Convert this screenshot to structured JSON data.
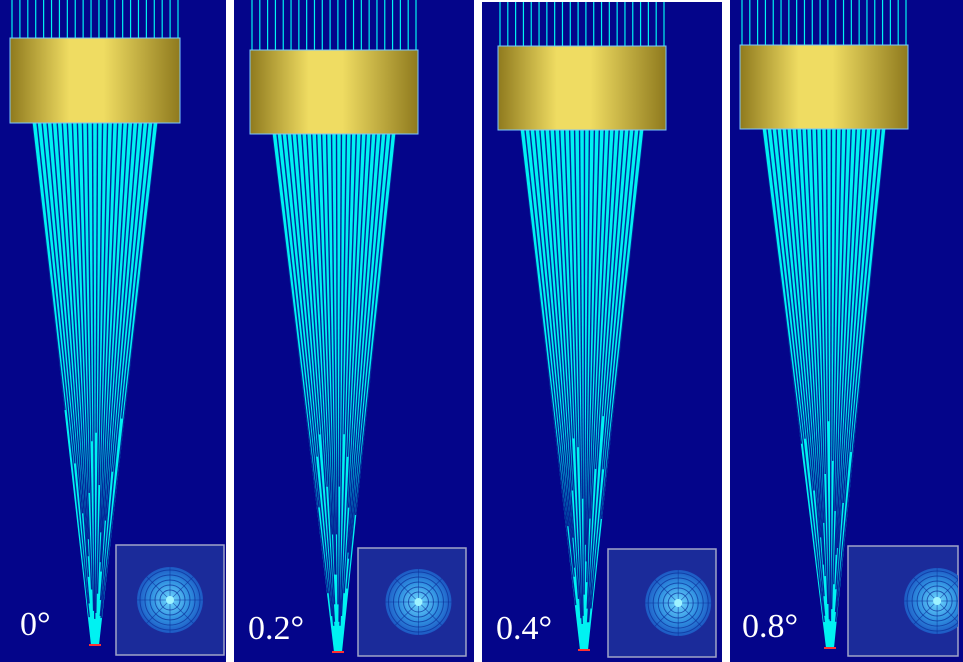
{
  "colors": {
    "background": "#ffffff",
    "field": "#04058a",
    "ray": "#00f2f2",
    "lens_dark": "#8f7a1e",
    "lens_light": "#efdc62",
    "lens_edge": "#7cc7ff",
    "inset_bg": "#1b2b9a",
    "inset_border": "#a0a4c8",
    "focus_mark": "#ff3030"
  },
  "panels": [
    {
      "angle_label": "0°",
      "field_angle_deg": 0,
      "spot_offset": 0.0
    },
    {
      "angle_label": "0.2°",
      "field_angle_deg": 0.2,
      "spot_offset": 0.12
    },
    {
      "angle_label": "0.4°",
      "field_angle_deg": 0.4,
      "spot_offset": 0.3
    },
    {
      "angle_label": "0.8°",
      "field_angle_deg": 0.8,
      "spot_offset": 0.62
    }
  ]
}
